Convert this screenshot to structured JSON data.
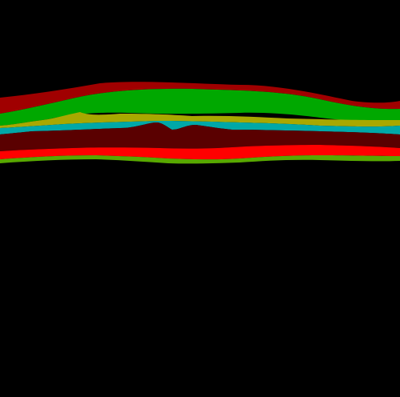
{
  "background_color": "#000000",
  "layers": [
    {
      "id": "band-top-darkred",
      "color": "#A00000"
    },
    {
      "id": "band-green",
      "color": "#00A800"
    },
    {
      "id": "band-olive",
      "color": "#A8A800"
    },
    {
      "id": "band-cyan",
      "color": "#00A8A8"
    },
    {
      "id": "band-maroon",
      "color": "#5A0000"
    },
    {
      "id": "band-red",
      "color": "#FF0000"
    },
    {
      "id": "band-lime",
      "color": "#58A800"
    }
  ]
}
